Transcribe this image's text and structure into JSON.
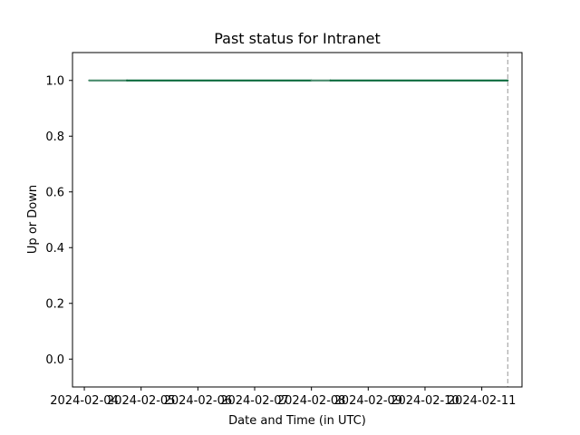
{
  "chart_data": {
    "type": "line",
    "title": "Past status for Intranet",
    "xlabel": "Date and Time (in UTC)",
    "ylabel": "Up or Down",
    "x_axis_type": "date",
    "xlim": [
      "2024-02-03T19:00",
      "2024-02-11T17:00"
    ],
    "ylim": [
      -0.1,
      1.1
    ],
    "x_ticks": [
      {
        "value": "2024-02-04",
        "label": "2024-02-04"
      },
      {
        "value": "2024-02-05",
        "label": "2024-02-05"
      },
      {
        "value": "2024-02-06",
        "label": "2024-02-06"
      },
      {
        "value": "2024-02-07",
        "label": "2024-02-07"
      },
      {
        "value": "2024-02-08",
        "label": "2024-02-08"
      },
      {
        "value": "2024-02-09",
        "label": "2024-02-09"
      },
      {
        "value": "2024-02-10",
        "label": "2024-02-10"
      },
      {
        "value": "2024-02-11",
        "label": "2024-02-11"
      }
    ],
    "y_ticks": [
      {
        "value": 0.0,
        "label": "0.0"
      },
      {
        "value": 0.2,
        "label": "0.2"
      },
      {
        "value": 0.4,
        "label": "0.4"
      },
      {
        "value": 0.6,
        "label": "0.6"
      },
      {
        "value": 0.8,
        "label": "0.8"
      },
      {
        "value": 1.0,
        "label": "1.0"
      }
    ],
    "grid": false,
    "legend": "none",
    "series": [
      {
        "color": "#4a8c6e",
        "points": [
          {
            "x": "2024-02-04T02:00",
            "y": 1
          },
          {
            "x": "2024-02-04T18:00",
            "y": 1
          }
        ]
      },
      {
        "color": "#0d6b3e",
        "points": [
          {
            "x": "2024-02-04T18:00",
            "y": 1
          },
          {
            "x": "2024-02-08T00:00",
            "y": 1
          }
        ]
      },
      {
        "color": "#4a8c6e",
        "points": [
          {
            "x": "2024-02-08T00:00",
            "y": 1
          },
          {
            "x": "2024-02-08T08:00",
            "y": 1
          }
        ]
      },
      {
        "color": "#0d6b3e",
        "points": [
          {
            "x": "2024-02-08T08:00",
            "y": 1
          },
          {
            "x": "2024-02-11T11:00",
            "y": 1
          }
        ]
      }
    ],
    "vline": {
      "x": "2024-02-11T11:00",
      "style": "dashed",
      "color": "#b0b0b0"
    }
  }
}
